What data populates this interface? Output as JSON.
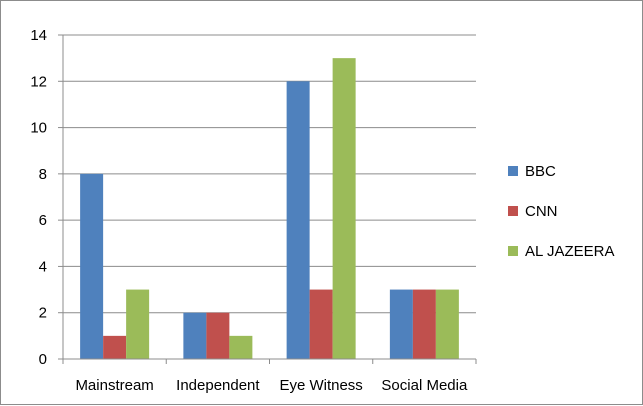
{
  "chart_data": {
    "type": "bar",
    "categories": [
      "Mainstream",
      "Independent",
      "Eye Witness",
      "Social Media"
    ],
    "series": [
      {
        "name": "BBC",
        "values": [
          8,
          2,
          12,
          3
        ],
        "color": "#4f81bd"
      },
      {
        "name": "CNN",
        "values": [
          1,
          2,
          3,
          3
        ],
        "color": "#c0504d"
      },
      {
        "name": "AL JAZEERA",
        "values": [
          3,
          1,
          13,
          3
        ],
        "color": "#9bbb59"
      }
    ],
    "ylim": [
      0,
      14
    ],
    "yticks": [
      "0",
      "2",
      "4",
      "6",
      "8",
      "10",
      "12",
      "14"
    ],
    "grid": true,
    "legend_position": "right"
  }
}
